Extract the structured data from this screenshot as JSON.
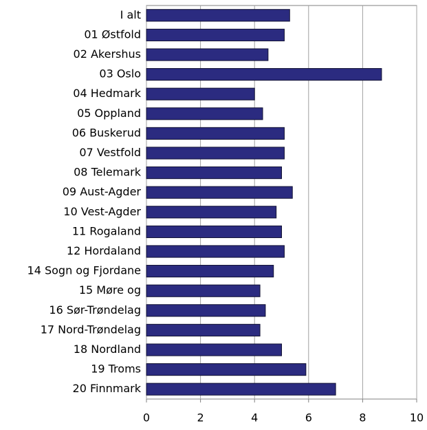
{
  "chart_data": {
    "type": "hbar",
    "categories": [
      "I alt",
      "01 Østfold",
      "02 Akershus",
      "03 Oslo",
      "04 Hedmark",
      "05 Oppland",
      "06 Buskerud",
      "07 Vestfold",
      "08 Telemark",
      "09 Aust-Agder",
      "10 Vest-Agder",
      "11 Rogaland",
      "12 Hordaland",
      "14 Sogn og Fjordane",
      "15 Møre og",
      "16 Sør-Trøndelag",
      "17 Nord-Trøndelag",
      "18 Nordland",
      "19 Troms",
      "20 Finnmark"
    ],
    "values": [
      5.3,
      5.1,
      4.5,
      8.7,
      4.0,
      4.3,
      5.1,
      5.1,
      5.0,
      5.4,
      4.8,
      5.0,
      5.1,
      4.7,
      4.2,
      4.4,
      4.2,
      5.0,
      5.9,
      7.0
    ],
    "color": "#2b2b80",
    "xlim": [
      0,
      10
    ],
    "xticks": [
      0,
      2,
      4,
      6,
      8,
      10
    ],
    "grid": true
  }
}
